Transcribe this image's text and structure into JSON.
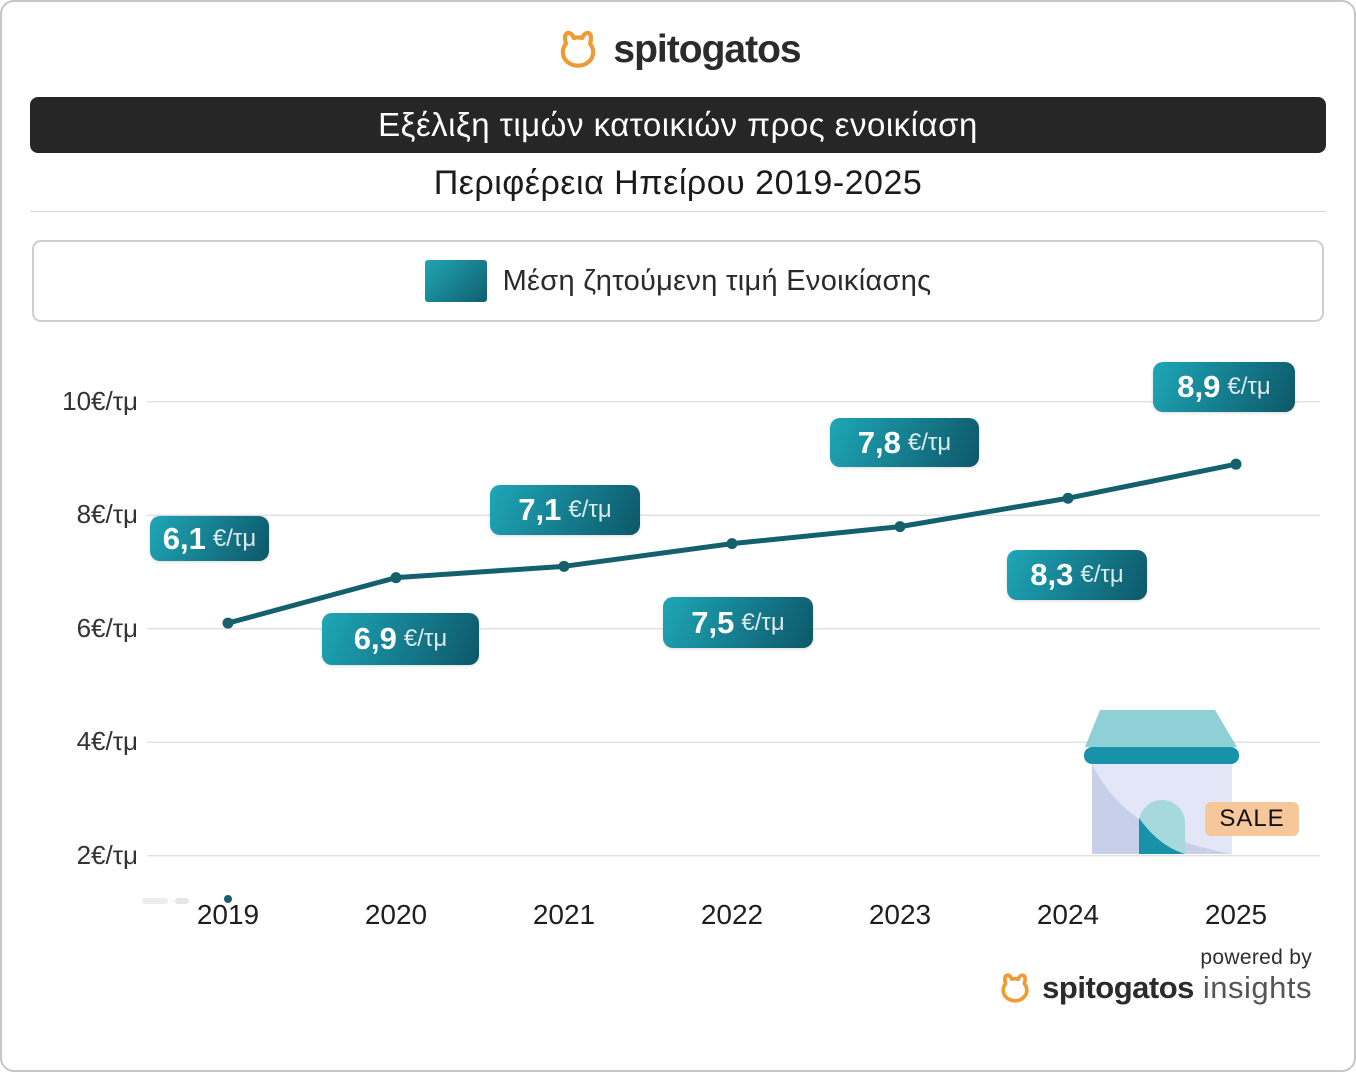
{
  "brand": {
    "logo_text": "spitogatos"
  },
  "header": {
    "title": "Εξέλιξη τιμών κατοικιών προς ενοικίαση",
    "subtitle": "Περιφέρεια Ηπείρου 2019-2025"
  },
  "legend": {
    "label": "Μέση ζητούμενη τιμή Ενοικίασης"
  },
  "house": {
    "sale_label": "SALE"
  },
  "footer": {
    "powered_by": "powered by",
    "brand": "spitogatos",
    "suffix": "insights"
  },
  "chart_data": {
    "type": "line",
    "title": "Εξέλιξη τιμών κατοικιών προς ενοικίαση",
    "subtitle": "Περιφέρεια Ηπείρου 2019-2025",
    "x": [
      "2019",
      "2020",
      "2021",
      "2022",
      "2023",
      "2024",
      "2025"
    ],
    "series": [
      {
        "name": "Μέση ζητούμενη τιμή Ενοικίασης",
        "values": [
          6.1,
          6.9,
          7.1,
          7.5,
          7.8,
          8.3,
          8.9
        ]
      }
    ],
    "point_labels": [
      {
        "value": "6,1",
        "unit": "€/τμ"
      },
      {
        "value": "6,9",
        "unit": "€/τμ"
      },
      {
        "value": "7,1",
        "unit": "€/τμ"
      },
      {
        "value": "7,5",
        "unit": "€/τμ"
      },
      {
        "value": "7,8",
        "unit": "€/τμ"
      },
      {
        "value": "8,3",
        "unit": "€/τμ"
      },
      {
        "value": "8,9",
        "unit": "€/τμ"
      }
    ],
    "yticks": [
      {
        "label": "10€/τμ",
        "value": 10
      },
      {
        "label": "8€/τμ",
        "value": 8
      },
      {
        "label": "6€/τμ",
        "value": 6
      },
      {
        "label": "4€/τμ",
        "value": 4
      },
      {
        "label": "2€/τμ",
        "value": 2
      }
    ],
    "unit": "€/τμ",
    "ylim": [
      2,
      10
    ],
    "grid": "horizontal-only",
    "legend_position": "top",
    "colors": {
      "line": "#14606d",
      "badge_gradient_light": "#1ea7b7",
      "badge_gradient_dark": "#0d5768",
      "brand_orange": "#f09a33",
      "banner_bg": "#262626",
      "gridline": "#dcdcdc",
      "sale_bg": "#f7c79c"
    }
  }
}
